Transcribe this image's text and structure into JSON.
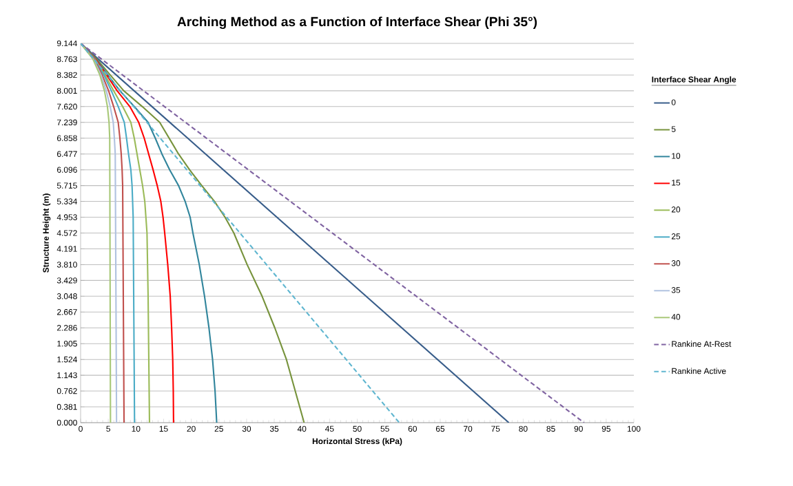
{
  "chart_data": {
    "type": "line",
    "title": "Arching Method as a Function of Interface Shear (Phi 35°)",
    "xlabel": "Horizontal Stress (kPa)",
    "ylabel": "Structure Height (m)",
    "legend_title": "Interface Shear Angle",
    "xlim": [
      0,
      100
    ],
    "xticks": [
      0,
      5,
      10,
      15,
      20,
      25,
      30,
      35,
      40,
      45,
      50,
      55,
      60,
      65,
      70,
      75,
      80,
      85,
      90,
      95,
      100
    ],
    "ylim": [
      0,
      9.144
    ],
    "yticks": [
      {
        "value": 0,
        "label": "0.000"
      },
      0.381,
      0.762,
      1.143,
      1.524,
      1.905,
      2.286,
      2.667,
      3.048,
      3.429,
      {
        "value": 3.81,
        "label": "3.810"
      },
      4.191,
      4.572,
      4.953,
      5.334,
      5.715,
      6.096,
      6.477,
      6.858,
      7.239,
      {
        "value": 7.62,
        "label": "7.620"
      },
      8.001,
      8.382,
      8.763,
      9.144
    ],
    "grid": "y",
    "legend": "right",
    "series": [
      {
        "name": "0",
        "color": "#385d8a",
        "x": [
          0,
          77.4
        ],
        "values": [
          9.144,
          0
        ]
      },
      {
        "name": "5",
        "color": "#77933c",
        "x": [
          0,
          2.94,
          5.35,
          7.8,
          11.15,
          14.3,
          16.0,
          17.7,
          19.7,
          21.9,
          24.2,
          26.1,
          27.7,
          30.1,
          32.8,
          35.1,
          37.2,
          38.8,
          40.4
        ],
        "values": [
          9.144,
          8.763,
          8.382,
          8.001,
          7.62,
          7.239,
          6.858,
          6.477,
          6.096,
          5.715,
          5.334,
          4.953,
          4.572,
          3.81,
          3.048,
          2.286,
          1.524,
          0.762,
          0
        ]
      },
      {
        "name": "10",
        "color": "#31859c",
        "x": [
          0,
          2.78,
          4.93,
          7.1,
          9.7,
          12.2,
          13.5,
          14.7,
          16.1,
          17.7,
          18.9,
          19.8,
          20.3,
          21.45,
          22.4,
          23.2,
          23.85,
          24.3,
          24.6
        ],
        "values": [
          9.144,
          8.763,
          8.382,
          8.001,
          7.62,
          7.239,
          6.858,
          6.477,
          6.096,
          5.715,
          5.334,
          4.953,
          4.572,
          3.81,
          3.048,
          2.286,
          1.524,
          0.762,
          0
        ]
      },
      {
        "name": "15",
        "color": "#ff0000",
        "x": [
          0,
          2.7,
          4.7,
          6.6,
          8.9,
          10.5,
          11.5,
          12.3,
          13.1,
          13.85,
          14.5,
          14.9,
          15.2,
          15.75,
          16.2,
          16.45,
          16.65,
          16.75,
          16.8
        ],
        "values": [
          9.144,
          8.763,
          8.382,
          8.001,
          7.62,
          7.239,
          6.858,
          6.477,
          6.096,
          5.715,
          5.334,
          4.953,
          4.572,
          3.81,
          3.048,
          2.286,
          1.524,
          0.762,
          0
        ]
      },
      {
        "name": "20",
        "color": "#9bbb59",
        "x": [
          0,
          2.61,
          4.4,
          5.97,
          7.6,
          9.08,
          9.7,
          10.2,
          10.7,
          11.2,
          11.6,
          11.8,
          12.0,
          12.1,
          12.2,
          12.45
        ],
        "values": [
          9.144,
          8.763,
          8.382,
          8.001,
          7.62,
          7.239,
          6.858,
          6.477,
          6.096,
          5.715,
          5.334,
          4.953,
          4.572,
          3.81,
          3.048,
          0
        ]
      },
      {
        "name": "25",
        "color": "#4bacc6",
        "x": [
          0,
          2.53,
          4.2,
          5.55,
          6.8,
          7.9,
          8.3,
          8.66,
          9.08,
          9.3,
          9.5,
          9.75
        ],
        "values": [
          9.144,
          8.763,
          8.382,
          8.001,
          7.62,
          7.239,
          6.858,
          6.477,
          6.096,
          5.715,
          4.953,
          0
        ]
      },
      {
        "name": "30",
        "color": "#c0504d",
        "x": [
          0,
          2.45,
          3.9,
          5.06,
          5.97,
          6.8,
          7.1,
          7.34,
          7.5,
          7.6,
          7.85
        ],
        "values": [
          9.144,
          8.763,
          8.382,
          8.001,
          7.62,
          7.239,
          6.858,
          6.477,
          6.096,
          5.715,
          0
        ]
      },
      {
        "name": "35",
        "color": "#b0c2e0",
        "x": [
          0,
          2.32,
          3.69,
          4.64,
          5.35,
          5.9,
          6.1,
          6.26,
          6.5
        ],
        "values": [
          9.144,
          8.763,
          8.382,
          8.001,
          7.62,
          7.239,
          6.858,
          6.477,
          0
        ]
      },
      {
        "name": "40",
        "color": "#a8c878",
        "x": [
          0,
          2.24,
          3.48,
          4.31,
          4.85,
          5.14,
          5.26,
          5.4
        ],
        "values": [
          9.144,
          8.763,
          8.382,
          8.001,
          7.62,
          7.239,
          6.858,
          0
        ]
      },
      {
        "name": "Rankine At-Rest",
        "color": "#8064a2",
        "line_style": "dashed",
        "x": [
          0,
          91.0
        ],
        "values": [
          9.144,
          0
        ]
      },
      {
        "name": "Rankine Active",
        "color": "#5fb6d0",
        "line_style": "dashed",
        "x": [
          0,
          57.6
        ],
        "values": [
          9.144,
          0
        ]
      }
    ]
  }
}
